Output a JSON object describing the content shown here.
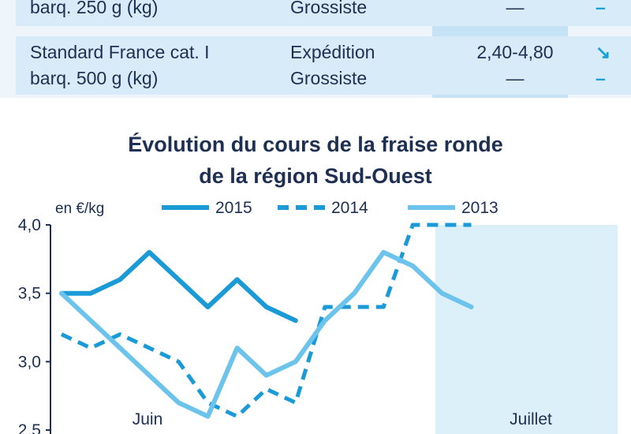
{
  "table": {
    "rows": [
      {
        "product": [
          "barq. 250 g (kg)"
        ],
        "market": [
          "Grossiste"
        ],
        "price": "—",
        "trend": [
          "–"
        ]
      },
      {
        "product": [
          "Standard France cat. I",
          "barq. 500 g (kg)"
        ],
        "market": [
          "Expédition",
          "Grossiste"
        ],
        "price": "2,40-4,80",
        "price2": "—",
        "trend": [
          "↘",
          "–"
        ]
      }
    ]
  },
  "chart_data": {
    "type": "line",
    "title": [
      "Évolution du cours de la fraise ronde",
      "de la région Sud-Ouest"
    ],
    "ylabel": "en €/kg",
    "ylim": [
      2.5,
      4.0
    ],
    "yticks": [
      "4,0",
      "3,5",
      "3,0",
      "2,5"
    ],
    "ytick_values": [
      4.0,
      3.5,
      3.0,
      2.5
    ],
    "x_points": 20,
    "month_labels": [
      "Juin",
      "Juillet"
    ],
    "highlight_period": "Juillet",
    "legend_position": "top",
    "series": [
      {
        "name": "2015",
        "style": "solid-thick",
        "color": "#1a9ad6",
        "values": [
          3.5,
          3.5,
          3.6,
          3.8,
          3.6,
          3.4,
          3.6,
          3.4,
          3.3,
          null,
          null,
          null,
          null,
          null,
          null,
          null,
          null,
          null,
          null,
          null
        ]
      },
      {
        "name": "2014",
        "style": "dashed",
        "color": "#1a9ad6",
        "values": [
          3.2,
          3.1,
          3.2,
          3.1,
          3.0,
          2.7,
          2.6,
          2.8,
          2.7,
          3.4,
          3.4,
          3.4,
          4.0,
          4.0,
          4.0,
          null,
          null,
          null,
          null,
          null
        ]
      },
      {
        "name": "2013",
        "style": "solid",
        "color": "#6cc3ec",
        "values": [
          3.5,
          3.3,
          3.1,
          2.9,
          2.7,
          2.6,
          3.1,
          2.9,
          3.0,
          3.3,
          3.5,
          3.8,
          3.7,
          3.5,
          3.4,
          null,
          null,
          null,
          null,
          null
        ]
      }
    ]
  }
}
